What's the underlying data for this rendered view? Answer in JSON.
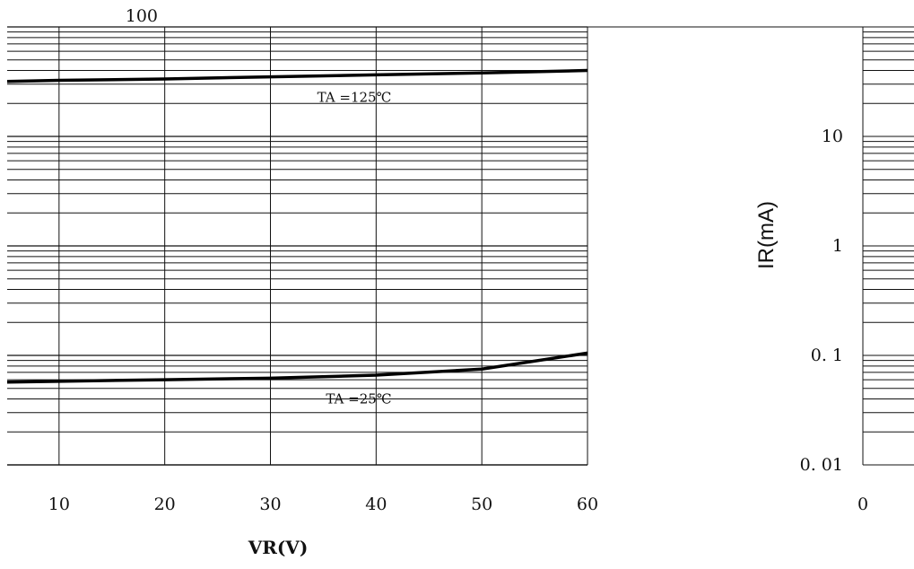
{
  "chart_data": {
    "type": "line",
    "title": "",
    "xlabel": "VR(V)",
    "ylabel": "IR(mA)",
    "xlim": [
      0,
      60
    ],
    "ylim": [
      0.01,
      100
    ],
    "yscale": "log",
    "grid": true,
    "x_ticks": [
      "0",
      "10",
      "20",
      "30",
      "40",
      "50",
      "60"
    ],
    "y_ticks": [
      "0.01",
      "0.1",
      "1",
      "10",
      "100"
    ],
    "y_tick_labels": [
      "0. 01",
      "0. 1",
      "1",
      "10",
      "100"
    ],
    "series": [
      {
        "name": "TA =125℃",
        "color": "#000000",
        "x": [
          0,
          10,
          20,
          30,
          40,
          50,
          60
        ],
        "y": [
          31,
          32.5,
          33.5,
          35,
          36.5,
          38,
          40
        ]
      },
      {
        "name": "TA =25℃",
        "color": "#000000",
        "x": [
          0,
          10,
          20,
          30,
          40,
          50,
          60
        ],
        "y": [
          0.056,
          0.058,
          0.06,
          0.062,
          0.066,
          0.075,
          0.105
        ]
      }
    ]
  }
}
